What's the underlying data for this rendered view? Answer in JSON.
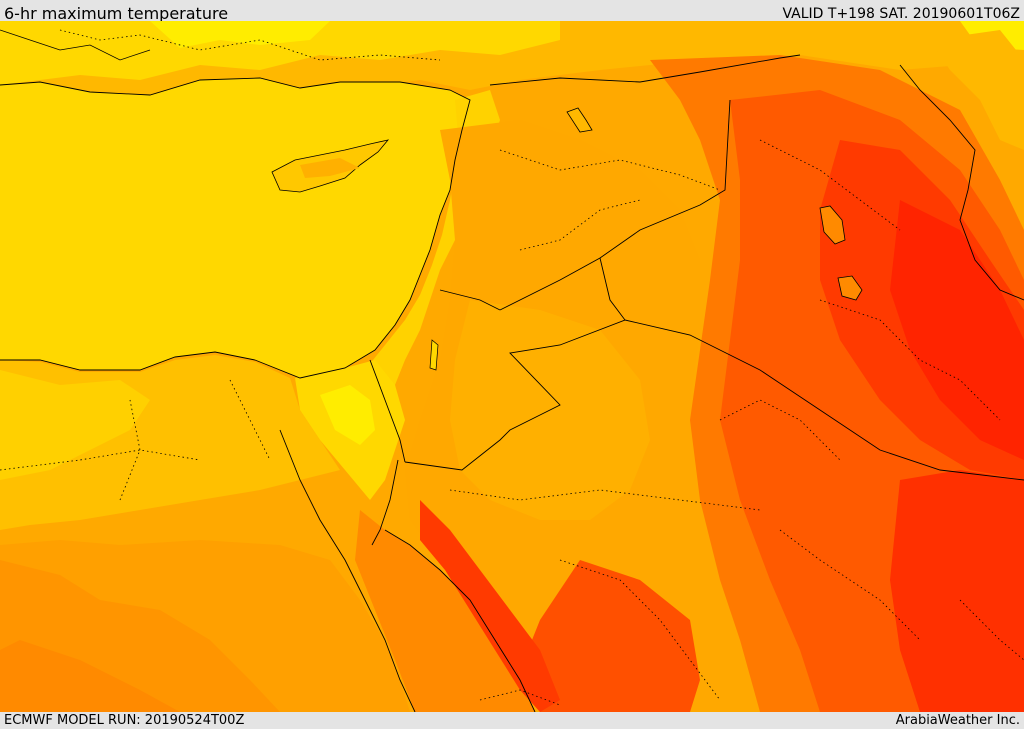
{
  "header": {
    "title": "6-hr maximum temperature",
    "valid_time": "VALID T+198 SAT. 20190601T06Z"
  },
  "footer": {
    "model_run": "ECMWF MODEL RUN: 20190524T00Z",
    "credit": "ArabiaWeather Inc."
  },
  "map": {
    "variable": "6-hr maximum temperature",
    "color_scale": [
      "#ffd800",
      "#ffed00",
      "#ffa900",
      "#ff8a00",
      "#ff5a00",
      "#ff3a00",
      "#ff2000"
    ]
  }
}
